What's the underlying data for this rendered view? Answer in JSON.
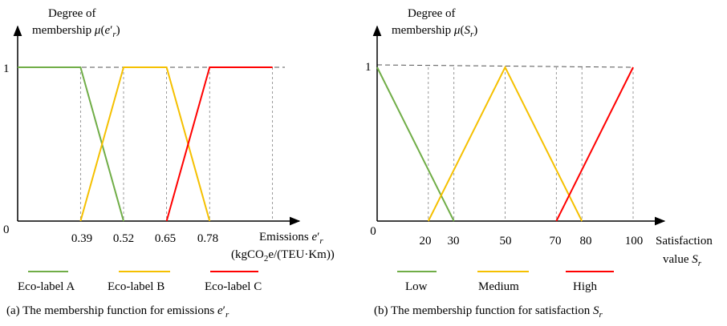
{
  "colors": {
    "green": "#70ad47",
    "yellow": "#f5c000",
    "red": "#ff0000",
    "axis": "#000000",
    "guide": "#7f7f7f"
  },
  "chart_data": [
    {
      "type": "line",
      "title": "(a) The membership function for emissions e′r",
      "ylabel": "Degree of membership μ(e′r)",
      "xlabel": "Emissions e′r (kgCO2e/(TEU·Km))",
      "x_ticks": [
        "0.39",
        "0.52",
        "0.65",
        "0.78"
      ],
      "y_ticks": [
        "0",
        "1"
      ],
      "legend_position": "bottom",
      "series": [
        {
          "name": "Eco-label A",
          "color": "#70ad47",
          "points": [
            [
              0.2,
              1
            ],
            [
              0.39,
              1
            ],
            [
              0.52,
              0
            ]
          ]
        },
        {
          "name": "Eco-label B",
          "color": "#f5c000",
          "points": [
            [
              0.39,
              0
            ],
            [
              0.52,
              1
            ],
            [
              0.65,
              1
            ],
            [
              0.78,
              0
            ]
          ]
        },
        {
          "name": "Eco-label C",
          "color": "#ff0000",
          "points": [
            [
              0.65,
              0
            ],
            [
              0.78,
              1
            ],
            [
              0.97,
              1
            ]
          ]
        }
      ]
    },
    {
      "type": "line",
      "title": "(b) The membership function for satisfaction Sr",
      "ylabel": "Degree of membership μ(Sr)",
      "xlabel": "Satisfaction value Sr",
      "x_ticks": [
        "0",
        "20",
        "30",
        "50",
        "70",
        "80",
        "100"
      ],
      "y_ticks": [
        "1"
      ],
      "legend_position": "bottom",
      "series": [
        {
          "name": "Low",
          "color": "#70ad47",
          "points": [
            [
              0,
              1
            ],
            [
              30,
              0
            ]
          ]
        },
        {
          "name": "Medium",
          "color": "#f5c000",
          "points": [
            [
              20,
              0
            ],
            [
              50,
              1
            ],
            [
              80,
              0
            ]
          ]
        },
        {
          "name": "High",
          "color": "#ff0000",
          "points": [
            [
              70,
              0
            ],
            [
              100,
              1
            ]
          ]
        }
      ]
    }
  ],
  "panel_a": {
    "ylabel_line1": "Degree of",
    "ylabel_line2_text": "membership ",
    "mu": "μ",
    "e": "e",
    "prime": "′",
    "r": "r",
    "open_paren": "(",
    "close_paren": ")",
    "y_tick_0": "0",
    "y_tick_1": "1",
    "x_ticks": [
      "0.39",
      "0.52",
      "0.65",
      "0.78"
    ],
    "xlabel_word": "Emissions ",
    "unit_prefix": "(kgCO",
    "unit_sub": "2",
    "unit_suffix": "e/(TEU·Km))",
    "legend": [
      "Eco-label A",
      "Eco-label B",
      "Eco-label C"
    ],
    "caption_text": "(a) The membership function for emissions "
  },
  "panel_b": {
    "ylabel_line1": "Degree of",
    "ylabel_line2_text": "membership ",
    "mu": "μ",
    "S": "S",
    "r": "r",
    "open_paren": "(",
    "close_paren": ")",
    "y_tick_1": "1",
    "x_ticks": [
      "0",
      "20",
      "30",
      "50",
      "70",
      "80",
      "100"
    ],
    "xlabel_line1": "Satisfaction",
    "xlabel_line2": "value ",
    "legend": [
      "Low",
      "Medium",
      "High"
    ],
    "caption_text": "(b) The membership function for satisfaction "
  }
}
